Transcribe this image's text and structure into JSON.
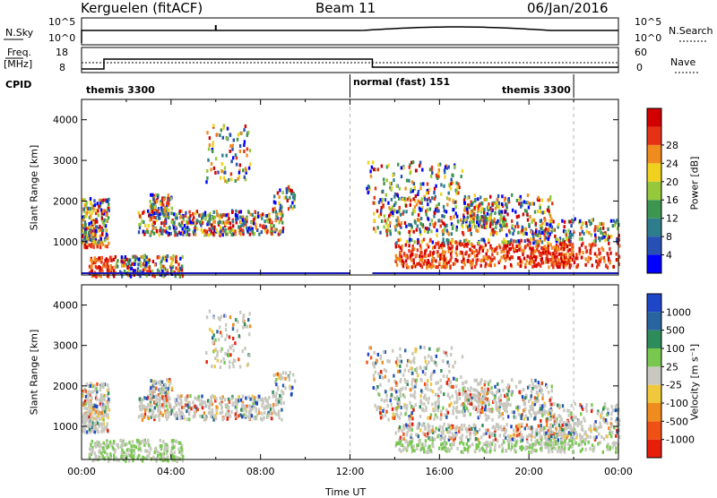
{
  "header": {
    "station": "Kerguelen (fitACF)",
    "beam": "Beam 11",
    "date": "06/Jan/2016"
  },
  "top_panel": {
    "left_label": "N.Sky",
    "right_label": "N.Search",
    "left_ticks": [
      "10^5",
      "10^0"
    ],
    "right_ticks": [
      "10^5",
      "10^0"
    ]
  },
  "freq_panel": {
    "left_label_1": "Freq.",
    "left_label_2": "[MHz]",
    "right_label": "Nave",
    "left_ticks": [
      "18",
      "8"
    ],
    "right_ticks": [
      "60",
      "0"
    ]
  },
  "cpid": {
    "label": "CPID",
    "segments": [
      "themis 3300",
      "normal (fast) 151",
      "themis 3300"
    ]
  },
  "colors": {
    "axis": "#000000",
    "low_range_line": "#1a1ab4",
    "grey_scatter": "#c8c8c0",
    "dashed": "#b4b4b4"
  },
  "chart_data": [
    {
      "type": "heatmap",
      "title": "Power",
      "ylabel": "Slant Range [km]",
      "ylim": [
        180,
        4500
      ],
      "xlim": [
        0,
        24
      ],
      "y_ticks": [
        "1000",
        "2000",
        "3000",
        "4000"
      ],
      "colorbar_label": "Power [dB]",
      "colorbar_ticks": [
        "4",
        "8",
        "12",
        "16",
        "20",
        "24",
        "28"
      ],
      "colorbar_colors": [
        "#0000ff",
        "#2850b4",
        "#2e7d8c",
        "#3c9650",
        "#96c83c",
        "#f0d21e",
        "#f08c1e",
        "#e63214",
        "#d20000"
      ]
    },
    {
      "type": "heatmap",
      "title": "Velocity",
      "ylabel": "Slant Range [km]",
      "ylim": [
        180,
        4500
      ],
      "xlim": [
        0,
        24
      ],
      "xlabel": "Time UT",
      "x_ticks": [
        "00:00",
        "04:00",
        "08:00",
        "12:00",
        "16:00",
        "20:00",
        "00:00"
      ],
      "y_ticks": [
        "1000",
        "2000",
        "3000",
        "4000"
      ],
      "colorbar_label": "Velocity [m s⁻¹]",
      "colorbar_ticks": [
        "1000",
        "500",
        "100",
        "25",
        "-25",
        "-100",
        "-500",
        "-1000"
      ],
      "colorbar_colors": [
        "#1e46c8",
        "#2864a0",
        "#2e8c5a",
        "#78c850",
        "#c8c8c0",
        "#f0c83c",
        "#f08c1e",
        "#f05014",
        "#e61e0a"
      ]
    }
  ]
}
